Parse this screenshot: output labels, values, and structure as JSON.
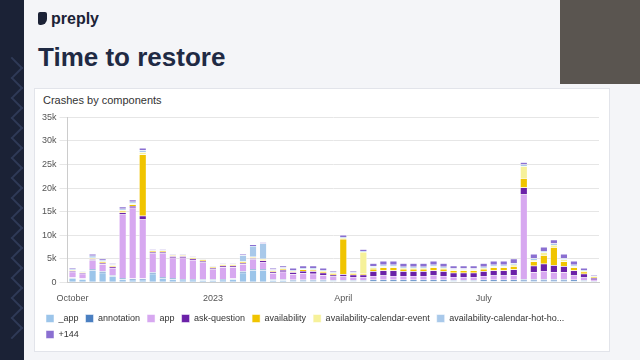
{
  "slide": {
    "logo": "preply",
    "title": "Time to restore"
  },
  "chart_data": {
    "type": "bar",
    "title": "Crashes by components",
    "stacked": true,
    "grid": true,
    "legend": "bottom",
    "categories": [
      "October",
      null,
      null,
      null,
      null,
      null,
      null,
      null,
      null,
      null,
      null,
      null,
      null,
      null,
      "2023",
      null,
      null,
      null,
      null,
      null,
      null,
      null,
      null,
      null,
      null,
      null,
      null,
      "April",
      null,
      null,
      null,
      null,
      null,
      null,
      null,
      null,
      null,
      null,
      null,
      null,
      null,
      "July",
      null,
      null,
      null,
      null,
      null,
      null,
      null,
      null,
      null,
      null,
      null
    ],
    "ylim": [
      0,
      35000
    ],
    "yticks": [
      0,
      {
        "value": 5000,
        "label": "5k"
      },
      {
        "value": 10000,
        "label": "10k"
      },
      {
        "value": 15000,
        "label": "15k"
      },
      {
        "value": 20000,
        "label": "20k"
      },
      {
        "value": 25000,
        "label": "25k"
      },
      {
        "value": 30000,
        "label": "30k"
      },
      {
        "value": 35000,
        "label": "35k"
      }
    ],
    "series": [
      {
        "name": "_app",
        "color": "#9cc5ea",
        "values": [
          800,
          600,
          2500,
          2000,
          1200,
          600,
          500,
          500,
          1800,
          800,
          600,
          500,
          500,
          400,
          400,
          500,
          600,
          2000,
          2500,
          2500,
          400,
          400,
          300,
          300,
          300,
          300,
          200,
          200,
          200,
          200,
          200,
          200,
          200,
          200,
          200,
          200,
          200,
          200,
          200,
          200,
          200,
          200,
          200,
          200,
          200,
          300,
          300,
          300,
          300,
          300,
          200,
          200,
          100
        ]
      },
      {
        "name": "annotation",
        "color": "#4a7fc1",
        "values": [
          200,
          200,
          300,
          300,
          300,
          300,
          300,
          300,
          300,
          300,
          300,
          200,
          200,
          200,
          200,
          200,
          200,
          300,
          300,
          300,
          200,
          200,
          200,
          200,
          200,
          200,
          200,
          200,
          200,
          200,
          300,
          300,
          300,
          300,
          300,
          300,
          300,
          300,
          200,
          200,
          200,
          300,
          300,
          300,
          300,
          300,
          300,
          300,
          300,
          300,
          300,
          200,
          100
        ]
      },
      {
        "name": "app",
        "color": "#d7a8f0",
        "values": [
          1200,
          1000,
          1800,
          1500,
          1500,
          13500,
          15000,
          12500,
          4000,
          5000,
          4300,
          4500,
          4000,
          3600,
          2100,
          2500,
          2400,
          1500,
          2000,
          1500,
          1300,
          1600,
          1200,
          1400,
          1300,
          1000,
          800,
          800,
          700,
          700,
          800,
          900,
          800,
          800,
          800,
          800,
          900,
          800,
          700,
          700,
          700,
          800,
          900,
          900,
          1000,
          18000,
          1500,
          1800,
          1500,
          1500,
          900,
          600,
          300
        ]
      },
      {
        "name": "ask-question",
        "color": "#6b21a8",
        "values": [
          200,
          200,
          300,
          300,
          300,
          400,
          400,
          800,
          300,
          300,
          300,
          300,
          300,
          300,
          300,
          300,
          300,
          300,
          300,
          300,
          300,
          400,
          400,
          500,
          500,
          500,
          400,
          500,
          500,
          500,
          1000,
          1100,
          1200,
          1000,
          1000,
          1000,
          1100,
          1000,
          900,
          900,
          900,
          1000,
          1100,
          1100,
          1200,
          1500,
          1400,
          1500,
          1500,
          1300,
          1100,
          800,
          400
        ]
      },
      {
        "name": "availability",
        "color": "#f0c400",
        "values": [
          100,
          100,
          200,
          200,
          200,
          300,
          300,
          13000,
          200,
          200,
          200,
          200,
          200,
          200,
          200,
          200,
          200,
          200,
          200,
          300,
          200,
          200,
          200,
          300,
          300,
          300,
          300,
          7500,
          300,
          300,
          500,
          600,
          600,
          500,
          500,
          500,
          600,
          500,
          500,
          500,
          500,
          500,
          600,
          600,
          700,
          2000,
          900,
          1800,
          3800,
          1000,
          600,
          400,
          200
        ]
      },
      {
        "name": "availability-calendar-event",
        "color": "#f6f19a",
        "values": [
          100,
          100,
          100,
          100,
          100,
          200,
          200,
          500,
          100,
          100,
          100,
          100,
          100,
          100,
          100,
          100,
          100,
          100,
          100,
          100,
          100,
          100,
          100,
          100,
          100,
          100,
          100,
          200,
          100,
          4500,
          300,
          300,
          300,
          200,
          200,
          200,
          300,
          200,
          200,
          200,
          200,
          200,
          300,
          300,
          300,
          2500,
          300,
          600,
          500,
          400,
          300,
          200,
          100
        ]
      },
      {
        "name": "availability-calendar-hot-ho...",
        "color": "#a9c9ea",
        "values": [
          200,
          100,
          400,
          300,
          200,
          300,
          400,
          400,
          100,
          100,
          100,
          100,
          100,
          100,
          100,
          100,
          100,
          1300,
          2300,
          3200,
          200,
          200,
          200,
          200,
          300,
          200,
          200,
          200,
          200,
          200,
          300,
          300,
          300,
          300,
          300,
          300,
          300,
          300,
          200,
          200,
          200,
          300,
          300,
          300,
          300,
          400,
          400,
          300,
          300,
          300,
          300,
          200,
          100
        ]
      },
      {
        "name": "+144",
        "color": "#8a6fd1",
        "values": [
          200,
          200,
          400,
          300,
          200,
          400,
          400,
          500,
          200,
          200,
          100,
          100,
          100,
          100,
          100,
          100,
          100,
          300,
          300,
          300,
          300,
          400,
          400,
          500,
          500,
          400,
          300,
          400,
          300,
          400,
          600,
          800,
          800,
          700,
          700,
          700,
          800,
          700,
          600,
          600,
          600,
          700,
          800,
          800,
          1000,
          500,
          900,
          900,
          800,
          900,
          800,
          400,
          200
        ]
      }
    ]
  }
}
